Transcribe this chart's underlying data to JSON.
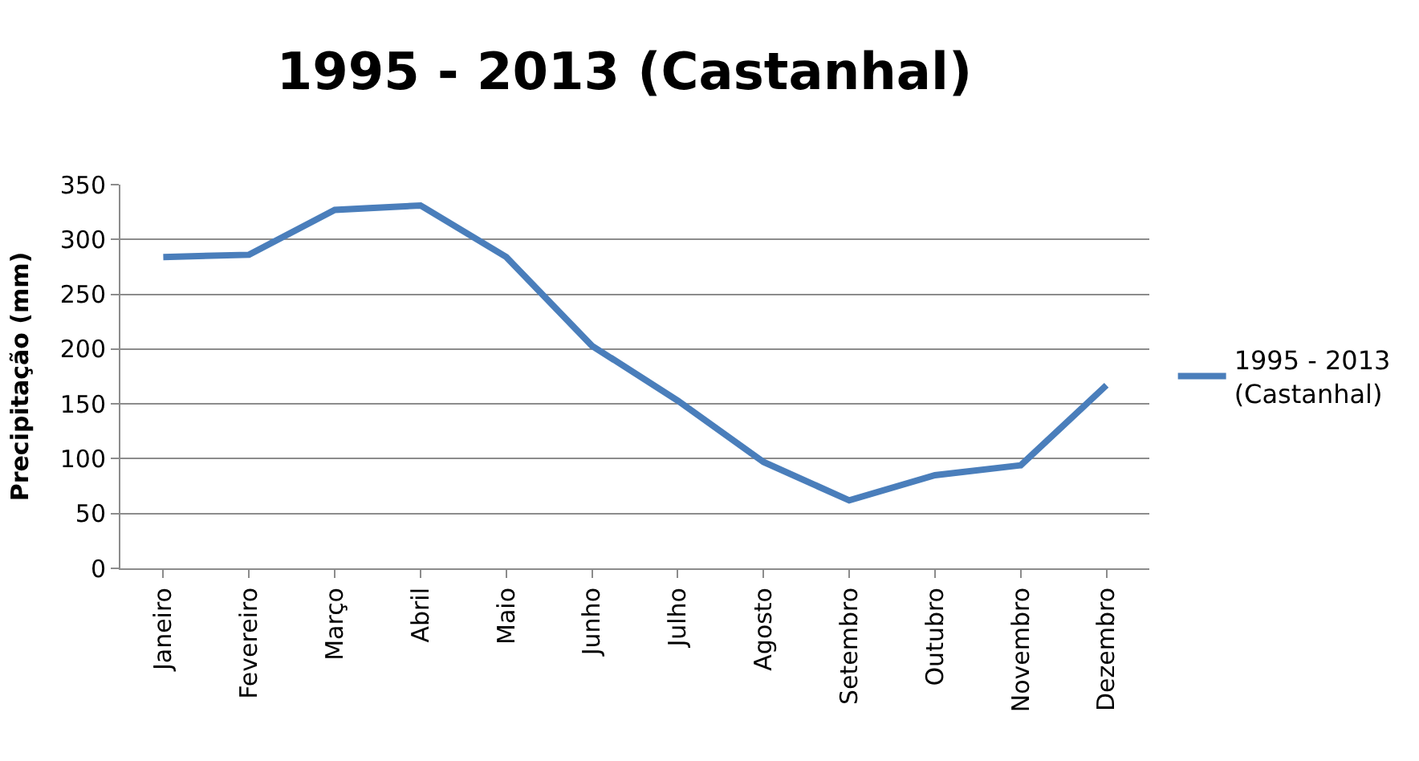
{
  "chart_data": {
    "type": "line",
    "title": "1995 - 2013 (Castanhal)",
    "ylabel": "Precipitação (mm)",
    "categories": [
      "Janeiro",
      "Fevereiro",
      "Março",
      "Abril",
      "Maio",
      "Junho",
      "Julho",
      "Agosto",
      "Setembro",
      "Outubro",
      "Novembro",
      "Dezembro"
    ],
    "series": [
      {
        "name": "1995 - 2013 (Castanhal)",
        "color": "#4a7ebb",
        "values": [
          284,
          286,
          327,
          331,
          284,
          203,
          153,
          97,
          62,
          85,
          94,
          167
        ]
      }
    ],
    "ylim": [
      0,
      350
    ],
    "yticks": [
      0,
      50,
      100,
      150,
      200,
      250,
      300,
      350
    ],
    "grid": "y",
    "legend": "right",
    "marker": "none",
    "line_style": "solid"
  }
}
